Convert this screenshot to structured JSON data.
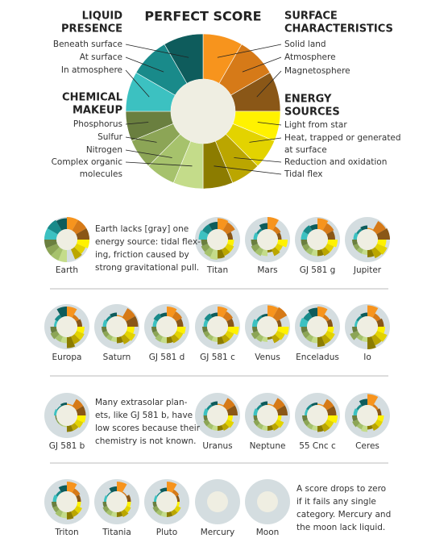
{
  "chart_data": {
    "type": "donut",
    "title": "PERFECT SCORE",
    "groups": [
      {
        "title": [
          "SURFACE",
          "CHARACTERISTICS"
        ],
        "segments": [
          {
            "label": [
              "Solid land"
            ],
            "color": "#f7941d"
          },
          {
            "label": [
              "Atmosphere"
            ],
            "color": "#d67a18"
          },
          {
            "label": [
              "Magnetosphere"
            ],
            "color": "#8a5717"
          }
        ]
      },
      {
        "title": [
          "ENERGY",
          "SOURCES"
        ],
        "segments": [
          {
            "label": [
              "Light from star"
            ],
            "color": "#fff200"
          },
          {
            "label": [
              "Heat, trapped or generated",
              "at surface"
            ],
            "color": "#e3d300"
          },
          {
            "label": [
              "Reduction and oxidation"
            ],
            "color": "#bba600"
          },
          {
            "label": [
              "Tidal flex"
            ],
            "color": "#8c7c00"
          }
        ]
      },
      {
        "title": [
          "CHEMICAL",
          "MAKEUP"
        ],
        "segments": [
          {
            "label": [
              "Complex organic",
              "molecules"
            ],
            "color": "#c4dc8a"
          },
          {
            "label": [
              "Nitrogen"
            ],
            "color": "#a6c26c"
          },
          {
            "label": [
              "Sulfur"
            ],
            "color": "#8ca556"
          },
          {
            "label": [
              "Phosphorus"
            ],
            "color": "#6a7f3f"
          }
        ]
      },
      {
        "title": [
          "LIQUID",
          "PRESENCE"
        ],
        "segments": [
          {
            "label": [
              "In atmosphere"
            ],
            "color": "#3cc1c1"
          },
          {
            "label": [
              "At surface"
            ],
            "color": "#198a8a"
          },
          {
            "label": [
              "Beneath surface"
            ],
            "color": "#0e5c5c"
          }
        ]
      }
    ],
    "rows": [
      {
        "bodies": [
          {
            "name": "Earth",
            "scores": [
              1,
              1,
              1,
              1,
              0.8,
              0.9,
              0,
              1,
              1,
              1,
              1,
              1,
              1,
              0.9
            ]
          },
          {
            "name": "Titan",
            "scores": [
              0.9,
              0.8,
              0.4,
              0.5,
              0.6,
              0.6,
              0.7,
              0.8,
              0.7,
              0.6,
              0.5,
              0.7,
              0.6,
              0.6
            ]
          },
          {
            "name": "Mars",
            "scores": [
              1,
              0.4,
              0.3,
              0.8,
              0.5,
              0.6,
              0.2,
              0.5,
              0.6,
              0.6,
              0.5,
              0.3,
              0.2,
              0.5
            ]
          },
          {
            "name": "GJ 581 g",
            "scores": [
              0.9,
              0.7,
              0.6,
              0.8,
              0.6,
              0.6,
              0.5,
              0.5,
              0.5,
              0.5,
              0.5,
              0.5,
              0.5,
              0.4
            ]
          },
          {
            "name": "Jupiter",
            "scores": [
              0.1,
              0.9,
              1,
              0.7,
              0.9,
              0.8,
              0.6,
              0.4,
              0.4,
              0.4,
              0.4,
              0.3,
              0.2,
              0.3
            ]
          }
        ],
        "note": [
          "Earth lacks [gray] one",
          "energy source: tidal flex-",
          "ing, friction caused by",
          "strong gravitational pull."
        ]
      },
      {
        "bodies": [
          {
            "name": "Europa",
            "scores": [
              0.8,
              0.3,
              0.4,
              0.6,
              0.7,
              0.7,
              0.9,
              0.5,
              0.5,
              0.6,
              0.5,
              0.2,
              0.3,
              0.8
            ]
          },
          {
            "name": "Saturn",
            "scores": [
              0.1,
              0.9,
              0.9,
              0.6,
              0.8,
              0.7,
              0.5,
              0.4,
              0.4,
              0.4,
              0.4,
              0.3,
              0.2,
              0.3
            ]
          },
          {
            "name": "GJ 581 d",
            "scores": [
              0.8,
              0.6,
              0.5,
              0.7,
              0.6,
              0.6,
              0.5,
              0.5,
              0.5,
              0.4,
              0.4,
              0.3,
              0.4,
              0.3
            ]
          },
          {
            "name": "GJ 581 c",
            "scores": [
              0.8,
              0.6,
              0.5,
              0.9,
              0.6,
              0.6,
              0.6,
              0.4,
              0.4,
              0.4,
              0.4,
              0.3,
              0.4,
              0.3
            ]
          },
          {
            "name": "Venus",
            "scores": [
              0.9,
              1,
              0.3,
              0.9,
              0.7,
              0.6,
              0.2,
              0.4,
              0.5,
              0.6,
              0.4,
              0.4,
              0.2,
              0.2
            ]
          },
          {
            "name": "Enceladus",
            "scores": [
              0.8,
              0.3,
              0.4,
              0.5,
              0.7,
              0.7,
              0.8,
              0.5,
              0.5,
              0.5,
              0.5,
              0.6,
              0.5,
              0.7
            ]
          },
          {
            "name": "Io",
            "scores": [
              0.9,
              0.4,
              0.5,
              0.6,
              0.9,
              0.8,
              1,
              0.4,
              0.4,
              0.7,
              0.4,
              0.2,
              0.2,
              0.3
            ]
          }
        ]
      },
      {
        "bodies": [
          {
            "name": "GJ 581 b",
            "scores": [
              0.1,
              0.7,
              0.7,
              0.7,
              0.6,
              0.5,
              0.5,
              0.1,
              0.1,
              0.1,
              0.1,
              0.2,
              0.1,
              0.2
            ]
          },
          {
            "name": "Uranus",
            "scores": [
              0.1,
              0.8,
              0.8,
              0.4,
              0.6,
              0.5,
              0.4,
              0.4,
              0.4,
              0.4,
              0.3,
              0.3,
              0.2,
              0.3
            ]
          },
          {
            "name": "Neptune",
            "scores": [
              0.1,
              0.8,
              0.8,
              0.3,
              0.6,
              0.5,
              0.4,
              0.4,
              0.4,
              0.4,
              0.3,
              0.3,
              0.2,
              0.3
            ]
          },
          {
            "name": "55 Cnc c",
            "scores": [
              0.1,
              0.7,
              0.7,
              0.8,
              0.6,
              0.6,
              0.5,
              0.4,
              0.4,
              0.4,
              0.4,
              0.2,
              0.2,
              0.2
            ]
          },
          {
            "name": "Ceres",
            "scores": [
              0.9,
              0.2,
              0.3,
              0.5,
              0.5,
              0.5,
              0.3,
              0.5,
              0.4,
              0.5,
              0.4,
              0.3,
              0.2,
              0.5
            ]
          }
        ],
        "note": [
          "Many extrasolar plan-",
          "ets, like GJ 581 b, have",
          "low scores because their",
          "chemistry is not known."
        ]
      },
      {
        "bodies": [
          {
            "name": "Triton",
            "scores": [
              0.8,
              0.4,
              0.3,
              0.3,
              0.5,
              0.5,
              0.6,
              0.5,
              0.5,
              0.4,
              0.4,
              0.3,
              0.2,
              0.5
            ]
          },
          {
            "name": "Titania",
            "scores": [
              0.8,
              0.1,
              0.3,
              0.3,
              0.4,
              0.5,
              0.4,
              0.4,
              0.4,
              0.4,
              0.3,
              0.2,
              0.1,
              0.4
            ]
          },
          {
            "name": "Pluto",
            "scores": [
              0.8,
              0.3,
              0.2,
              0.2,
              0.4,
              0.4,
              0.4,
              0.4,
              0.4,
              0.4,
              0.3,
              0.2,
              0.1,
              0.3
            ]
          },
          {
            "name": "Mercury",
            "scores": [
              0,
              0,
              0,
              0,
              0,
              0,
              0,
              0,
              0,
              0,
              0,
              0,
              0,
              0
            ]
          },
          {
            "name": "Moon",
            "scores": [
              0,
              0,
              0,
              0,
              0,
              0,
              0,
              0,
              0,
              0,
              0,
              0,
              0,
              0
            ]
          }
        ],
        "note": [
          "A score drops to zero",
          "if it fails any single",
          "category. Mercury and",
          "the moon lack liquid."
        ]
      }
    ]
  }
}
